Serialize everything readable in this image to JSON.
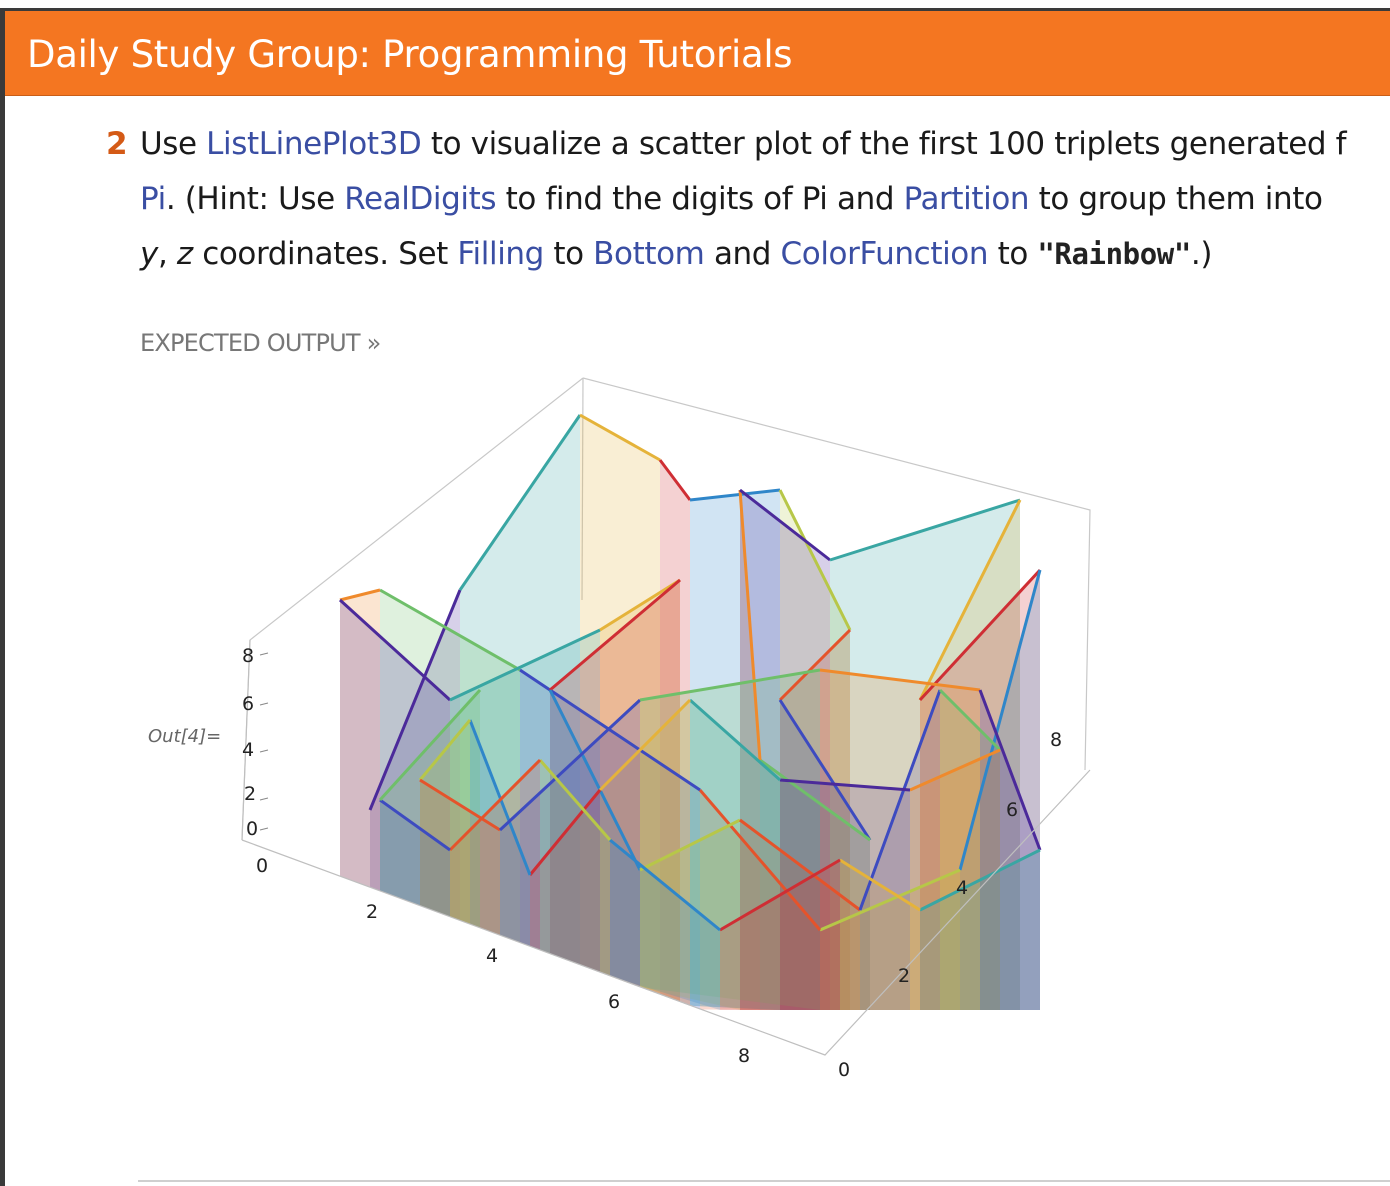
{
  "header": {
    "title": "Daily Study Group: Programming Tutorials"
  },
  "problem": {
    "number": "2",
    "line1": [
      {
        "text": "Use ",
        "style": "plain"
      },
      {
        "text": "ListLinePlot3D",
        "style": "kw"
      },
      {
        "text": " to visualize a scatter plot of the first 100 triplets generated f",
        "style": "plain"
      }
    ],
    "line2": [
      {
        "text": "Pi",
        "style": "kw"
      },
      {
        "text": ". (Hint: Use ",
        "style": "plain"
      },
      {
        "text": "RealDigits",
        "style": "kw"
      },
      {
        "text": " to find the digits of Pi and ",
        "style": "plain"
      },
      {
        "text": "Partition",
        "style": "kw"
      },
      {
        "text": " to group them into",
        "style": "plain"
      }
    ],
    "line3": [
      {
        "text": "y",
        "style": "ital"
      },
      {
        "text": ", ",
        "style": "plain"
      },
      {
        "text": "z",
        "style": "ital"
      },
      {
        "text": " coordinates. Set ",
        "style": "plain"
      },
      {
        "text": "Filling",
        "style": "kw"
      },
      {
        "text": " to ",
        "style": "plain"
      },
      {
        "text": "Bottom",
        "style": "kw"
      },
      {
        "text": " and ",
        "style": "plain"
      },
      {
        "text": "ColorFunction",
        "style": "kw"
      },
      {
        "text": " to ",
        "style": "plain"
      },
      {
        "text": "\"Rainbow\"",
        "style": "mono"
      },
      {
        "text": ".)",
        "style": "plain"
      }
    ]
  },
  "expected_output_label": "EXPECTED OUTPUT »",
  "output_label": "Out[4]=",
  "plot_axes": {
    "z_ticks": [
      "8",
      "6",
      "4",
      "2",
      "0"
    ],
    "front_x_ticks": [
      "0",
      "2",
      "4",
      "6",
      "8"
    ],
    "right_y_ticks": [
      "0",
      "2",
      "4",
      "6",
      "8"
    ]
  },
  "colors": {
    "header": "#f47621",
    "number": "#d45a16",
    "keyword": "#3a4ea3"
  }
}
